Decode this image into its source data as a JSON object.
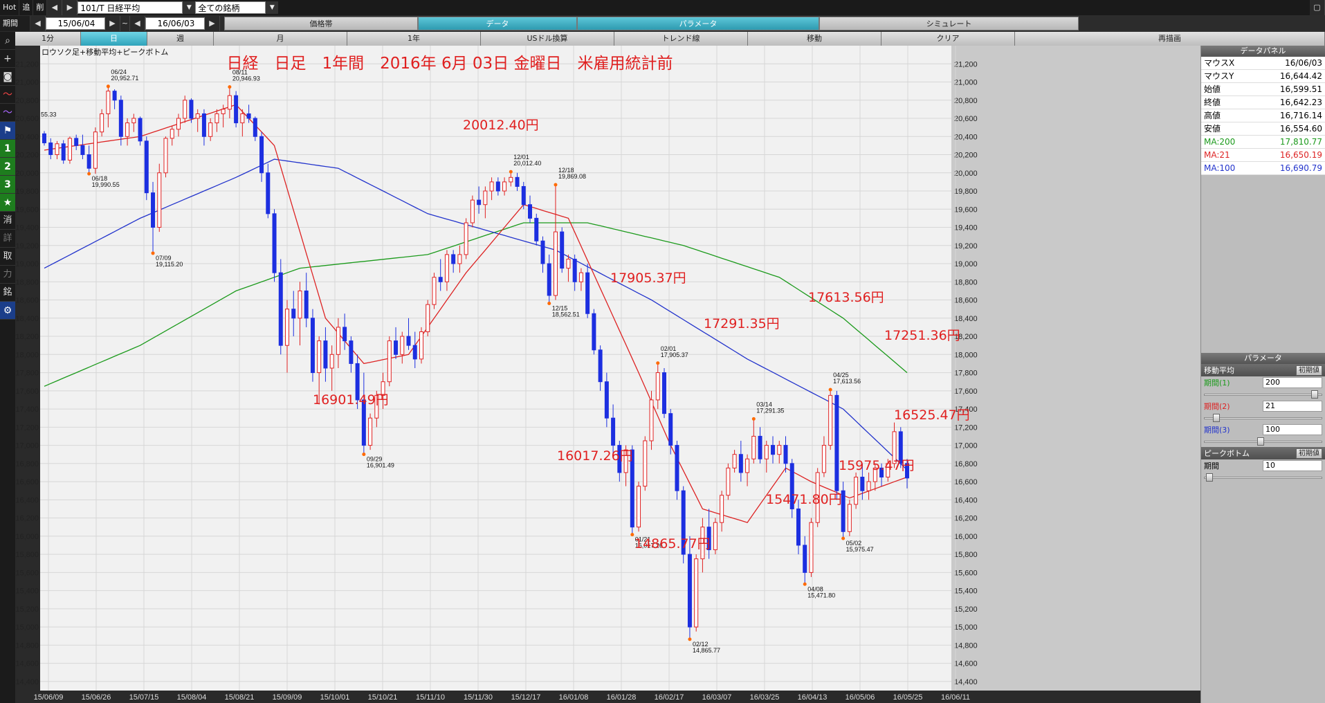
{
  "toolbar": {
    "hot": "Hot",
    "tsuika": "追",
    "sakujo": "削",
    "symbol_value": "101/T 日経平均",
    "filter_value": "全ての銘柄"
  },
  "period": {
    "label": "期間",
    "start": "15/06/04",
    "separator": "~",
    "end": "16/06/03"
  },
  "tabs_top": [
    {
      "label": "価格帯",
      "active": false
    },
    {
      "label": "データ",
      "active": true
    },
    {
      "label": "パラメータ",
      "active": true
    },
    {
      "label": "シミュレート",
      "active": false
    }
  ],
  "tabs_sub": [
    {
      "label": "1分",
      "active": false
    },
    {
      "label": "日",
      "active": true
    },
    {
      "label": "週",
      "active": false
    },
    {
      "label": "月",
      "active": false
    },
    {
      "label": "1年",
      "active": false
    },
    {
      "label": "USドル換算",
      "active": false
    },
    {
      "label": "トレンド線",
      "active": false
    },
    {
      "label": "移動",
      "active": false
    },
    {
      "label": "クリア",
      "active": false
    },
    {
      "label": "再描画",
      "active": false
    }
  ],
  "left_icons": [
    "search-icon",
    "plus-icon",
    "camera-icon",
    "line-chart-icon",
    "line-chart2-icon",
    "flag-icon",
    "num-1",
    "num-2",
    "num-3",
    "star-icon",
    "消",
    "詳",
    "取",
    "力",
    "銘",
    "gear-icon"
  ],
  "left_labels": {
    "n1": "1",
    "n2": "2",
    "n3": "3",
    "k1": "消",
    "k2": "詳",
    "k3": "取",
    "k4": "力",
    "k5": "銘"
  },
  "chart": {
    "legend": "ロウソク足+移動平均+ピークボトム",
    "title": "日経　日足　1年間　2016年 6月 03日 金曜日　米雇用統計前",
    "yticks": [
      21200,
      21000,
      20800,
      20600,
      20400,
      20200,
      20000,
      19800,
      19600,
      19400,
      19200,
      19000,
      18800,
      18600,
      18400,
      18200,
      18000,
      17800,
      17600,
      17400,
      17200,
      17000,
      16800,
      16600,
      16400,
      16200,
      16000,
      15800,
      15600,
      15400,
      15200,
      15000,
      14800,
      14600,
      14400
    ],
    "xticks": [
      "15/06/09",
      "15/06/26",
      "15/07/15",
      "15/08/04",
      "15/08/21",
      "15/09/09",
      "15/10/01",
      "15/10/21",
      "15/11/10",
      "15/11/30",
      "15/12/17",
      "16/01/08",
      "16/01/28",
      "16/02/17",
      "16/03/07",
      "16/03/25",
      "16/04/13",
      "16/05/06",
      "16/05/25",
      "16/06/11"
    ],
    "small_labels": [
      {
        "d": "06/24",
        "v": "20,952.71"
      },
      {
        "d": "06/18",
        "v": "19,990.55"
      },
      {
        "d": "07/09",
        "v": "19,115.20"
      },
      {
        "d": "08/11",
        "v": "20,946.93"
      },
      {
        "d": "09/29",
        "v": "16,901.49"
      },
      {
        "d": "12/01",
        "v": "20,012.40"
      },
      {
        "d": "12/18",
        "v": "19,869.08"
      },
      {
        "d": "12/15",
        "v": "18,562.51"
      },
      {
        "d": "02/01",
        "v": "17,905.37"
      },
      {
        "d": "01/21",
        "v": "16,017.26"
      },
      {
        "d": "02/12",
        "v": "14,865.77"
      },
      {
        "d": "03/14",
        "v": "17,291.35"
      },
      {
        "d": "04/08",
        "v": "15,471.80"
      },
      {
        "d": "04/25",
        "v": "17,613.56"
      },
      {
        "d": "05/02",
        "v": "15,975.47"
      }
    ],
    "left_edge_label": "55.33",
    "big_labels": [
      "20012.40円",
      "16901.49円",
      "17905.37円",
      "16017.26円",
      "14865.77円",
      "17291.35円",
      "15471.80円",
      "17613.56円",
      "15975.47円",
      "17251.36円",
      "16525.47円"
    ],
    "candles": [
      [
        20430,
        20460,
        20300,
        20330
      ],
      [
        20330,
        20380,
        20150,
        20200
      ],
      [
        20200,
        20350,
        20150,
        20320
      ],
      [
        20320,
        20360,
        20100,
        20140
      ],
      [
        20140,
        20400,
        20100,
        20380
      ],
      [
        20380,
        20420,
        20250,
        20300
      ],
      [
        20300,
        20420,
        20150,
        20200
      ],
      [
        20200,
        20300,
        20000,
        20050
      ],
      [
        20050,
        20500,
        19990,
        20450
      ],
      [
        20450,
        20700,
        20400,
        20650
      ],
      [
        20650,
        20952,
        20500,
        20900
      ],
      [
        20900,
        20920,
        20700,
        20800
      ],
      [
        20800,
        20850,
        20300,
        20400
      ],
      [
        20400,
        20600,
        20300,
        20550
      ],
      [
        20550,
        20650,
        20450,
        20600
      ],
      [
        20600,
        20620,
        20300,
        20350
      ],
      [
        20350,
        20400,
        19700,
        19780
      ],
      [
        19780,
        19900,
        19115,
        19400
      ],
      [
        19400,
        20100,
        19350,
        20000
      ],
      [
        20000,
        20400,
        19950,
        20380
      ],
      [
        20380,
        20520,
        20300,
        20480
      ],
      [
        20480,
        20650,
        20400,
        20600
      ],
      [
        20600,
        20850,
        20550,
        20800
      ],
      [
        20800,
        20820,
        20550,
        20600
      ],
      [
        20600,
        20700,
        20450,
        20650
      ],
      [
        20650,
        20700,
        20300,
        20400
      ],
      [
        20400,
        20600,
        20350,
        20550
      ],
      [
        20550,
        20700,
        20450,
        20650
      ],
      [
        20650,
        20750,
        20500,
        20700
      ],
      [
        20700,
        20946,
        20600,
        20850
      ],
      [
        20850,
        20900,
        20500,
        20550
      ],
      [
        20550,
        20700,
        20400,
        20650
      ],
      [
        20650,
        20750,
        20550,
        20600
      ],
      [
        20600,
        20620,
        20350,
        20400
      ],
      [
        20400,
        20450,
        19900,
        20000
      ],
      [
        20000,
        20100,
        19500,
        19550
      ],
      [
        19550,
        19600,
        18800,
        18900
      ],
      [
        18900,
        19050,
        18000,
        18100
      ],
      [
        18100,
        18600,
        17800,
        18500
      ],
      [
        18500,
        18700,
        18200,
        18400
      ],
      [
        18400,
        18800,
        18100,
        18700
      ],
      [
        18700,
        18900,
        18300,
        18400
      ],
      [
        18400,
        18500,
        17700,
        17800
      ],
      [
        17800,
        18200,
        17450,
        18150
      ],
      [
        18150,
        18300,
        17700,
        17850
      ],
      [
        17850,
        18100,
        17600,
        18000
      ],
      [
        18000,
        18400,
        17850,
        18300
      ],
      [
        18300,
        18450,
        18050,
        18150
      ],
      [
        18150,
        18200,
        17800,
        17900
      ],
      [
        17900,
        18000,
        17400,
        17500
      ],
      [
        17500,
        17800,
        16901,
        17000
      ],
      [
        17000,
        17350,
        16950,
        17300
      ],
      [
        17300,
        17600,
        17200,
        17550
      ],
      [
        17550,
        17800,
        17400,
        17700
      ],
      [
        17700,
        18200,
        17650,
        18150
      ],
      [
        18150,
        18300,
        17950,
        18000
      ],
      [
        18000,
        18250,
        17900,
        18200
      ],
      [
        18200,
        18400,
        18050,
        18100
      ],
      [
        18100,
        18250,
        17850,
        17950
      ],
      [
        17950,
        18300,
        17900,
        18250
      ],
      [
        18250,
        18600,
        18200,
        18550
      ],
      [
        18550,
        18900,
        18500,
        18850
      ],
      [
        18850,
        19050,
        18700,
        18800
      ],
      [
        18800,
        19150,
        18700,
        19100
      ],
      [
        19100,
        19150,
        18900,
        19000
      ],
      [
        19000,
        19200,
        18900,
        19100
      ],
      [
        19100,
        19500,
        19050,
        19450
      ],
      [
        19450,
        19750,
        19400,
        19700
      ],
      [
        19700,
        19850,
        19550,
        19650
      ],
      [
        19650,
        19850,
        19500,
        19800
      ],
      [
        19800,
        19950,
        19700,
        19900
      ],
      [
        19900,
        19950,
        19750,
        19800
      ],
      [
        19800,
        19950,
        19750,
        19900
      ],
      [
        19900,
        20012,
        19850,
        19950
      ],
      [
        19950,
        20000,
        19800,
        19850
      ],
      [
        19850,
        19900,
        19600,
        19650
      ],
      [
        19650,
        19750,
        19450,
        19500
      ],
      [
        19500,
        19550,
        19200,
        19250
      ],
      [
        19250,
        19300,
        18900,
        19000
      ],
      [
        19000,
        19100,
        18562,
        18650
      ],
      [
        18650,
        19869,
        18600,
        19350
      ],
      [
        19350,
        19400,
        18900,
        18950
      ],
      [
        18950,
        19100,
        18800,
        19050
      ],
      [
        19050,
        19100,
        18700,
        18800
      ],
      [
        18800,
        18950,
        18700,
        18900
      ],
      [
        18900,
        19000,
        18400,
        18450
      ],
      [
        18450,
        18500,
        18000,
        18050
      ],
      [
        18050,
        18100,
        17600,
        17700
      ],
      [
        17700,
        17800,
        17200,
        17300
      ],
      [
        17300,
        17450,
        16900,
        17000
      ],
      [
        17000,
        17050,
        16600,
        16700
      ],
      [
        16700,
        17000,
        16550,
        16950
      ],
      [
        16950,
        17000,
        16017,
        16100
      ],
      [
        16100,
        16600,
        16050,
        16550
      ],
      [
        16550,
        17100,
        16500,
        17050
      ],
      [
        17050,
        17600,
        16950,
        17500
      ],
      [
        17500,
        17905,
        17400,
        17800
      ],
      [
        17800,
        17850,
        17300,
        17350
      ],
      [
        17350,
        17400,
        16900,
        17000
      ],
      [
        17000,
        17050,
        16400,
        16500
      ],
      [
        16500,
        16550,
        15700,
        15800
      ],
      [
        15800,
        16000,
        14865,
        15000
      ],
      [
        15000,
        15800,
        14950,
        15750
      ],
      [
        15750,
        16200,
        15600,
        16100
      ],
      [
        16100,
        16300,
        15750,
        15850
      ],
      [
        15850,
        16200,
        15800,
        16150
      ],
      [
        16150,
        16500,
        16050,
        16450
      ],
      [
        16450,
        16800,
        16400,
        16750
      ],
      [
        16750,
        16950,
        16700,
        16900
      ],
      [
        16900,
        17050,
        16600,
        16700
      ],
      [
        16700,
        16900,
        16550,
        16850
      ],
      [
        16850,
        17291,
        16800,
        17100
      ],
      [
        17100,
        17200,
        16800,
        16850
      ],
      [
        16850,
        17050,
        16700,
        17000
      ],
      [
        17000,
        17100,
        16800,
        16900
      ],
      [
        16900,
        17050,
        16800,
        17000
      ],
      [
        17000,
        17100,
        16700,
        16800
      ],
      [
        16800,
        16850,
        16200,
        16300
      ],
      [
        16300,
        16400,
        15800,
        15900
      ],
      [
        15900,
        16000,
        15471,
        15600
      ],
      [
        15600,
        16200,
        15550,
        16150
      ],
      [
        16150,
        16750,
        16100,
        16700
      ],
      [
        16700,
        17100,
        16650,
        17000
      ],
      [
        17000,
        17613,
        16950,
        17550
      ],
      [
        17550,
        17600,
        16400,
        16500
      ],
      [
        16500,
        16600,
        15975,
        16050
      ],
      [
        16050,
        16400,
        16000,
        16350
      ],
      [
        16350,
        16700,
        16300,
        16650
      ],
      [
        16650,
        16800,
        16400,
        16500
      ],
      [
        16500,
        16700,
        16400,
        16600
      ],
      [
        16600,
        16800,
        16500,
        16750
      ],
      [
        16750,
        16800,
        16550,
        16650
      ],
      [
        16650,
        16850,
        16600,
        16800
      ],
      [
        16800,
        17251,
        16750,
        17150
      ],
      [
        17150,
        17200,
        16750,
        16800
      ],
      [
        16800,
        16850,
        16525,
        16640
      ]
    ],
    "ma21_stops": [
      [
        0,
        20250
      ],
      [
        15,
        20400
      ],
      [
        30,
        20750
      ],
      [
        36,
        20300
      ],
      [
        44,
        18400
      ],
      [
        50,
        17900
      ],
      [
        57,
        18000
      ],
      [
        66,
        18900
      ],
      [
        75,
        19650
      ],
      [
        82,
        19500
      ],
      [
        93,
        17800
      ],
      [
        98,
        17000
      ],
      [
        103,
        16300
      ],
      [
        110,
        16150
      ],
      [
        116,
        16750
      ],
      [
        120,
        16600
      ],
      [
        126,
        16420
      ],
      [
        135,
        16650
      ]
    ],
    "ma100_stops": [
      [
        0,
        18950
      ],
      [
        15,
        19500
      ],
      [
        30,
        19950
      ],
      [
        36,
        20150
      ],
      [
        46,
        20050
      ],
      [
        60,
        19550
      ],
      [
        80,
        19150
      ],
      [
        95,
        18600
      ],
      [
        110,
        17950
      ],
      [
        125,
        17400
      ],
      [
        135,
        16730
      ]
    ],
    "ma200_stops": [
      [
        0,
        17650
      ],
      [
        15,
        18100
      ],
      [
        30,
        18700
      ],
      [
        40,
        18950
      ],
      [
        60,
        19100
      ],
      [
        75,
        19450
      ],
      [
        85,
        19450
      ],
      [
        100,
        19200
      ],
      [
        115,
        18850
      ],
      [
        125,
        18400
      ],
      [
        135,
        17800
      ]
    ],
    "colors": {
      "up": "#e02020",
      "down": "#1c2fe0",
      "ma21": "#dd2222",
      "ma100": "#2233cc",
      "ma200": "#1b9a1b",
      "grid": "#d6d6d6",
      "bg": "#f1f1f1"
    }
  },
  "panel": {
    "data_title": "データパネル",
    "data_rows": [
      {
        "k": "マウスX",
        "v": "16/06/03",
        "c": "#000"
      },
      {
        "k": "マウスY",
        "v": "16,644.42",
        "c": "#000"
      },
      {
        "k": "始値",
        "v": "16,599.51",
        "c": "#000"
      },
      {
        "k": "終値",
        "v": "16,642.23",
        "c": "#000"
      },
      {
        "k": "高値",
        "v": "16,716.14",
        "c": "#000"
      },
      {
        "k": "安値",
        "v": "16,554.60",
        "c": "#000"
      },
      {
        "k": "MA:200",
        "v": "17,810.77",
        "c": "#1b9a1b"
      },
      {
        "k": "MA:21",
        "v": "16,650.19",
        "c": "#dd2222"
      },
      {
        "k": "MA:100",
        "v": "16,690.79",
        "c": "#2233cc"
      }
    ],
    "param_title": "パラメータ",
    "ma_section": "移動平均",
    "reset": "初期値",
    "ma_params": [
      {
        "label": "期間(1)",
        "value": "200",
        "color": "#1b9a1b",
        "pos": 0.97
      },
      {
        "label": "期間(2)",
        "value": "21",
        "color": "#dd2222",
        "pos": 0.08
      },
      {
        "label": "期間(3)",
        "value": "100",
        "color": "#2233cc",
        "pos": 0.48
      }
    ],
    "pb_section": "ピークボトム",
    "pb_param": {
      "label": "期間",
      "value": "10",
      "pos": 0.02
    }
  }
}
